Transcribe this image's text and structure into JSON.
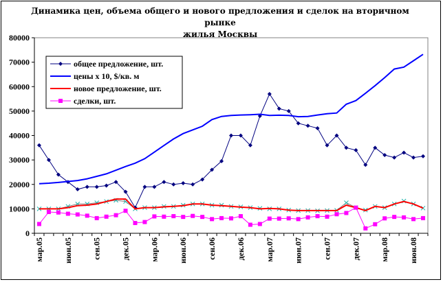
{
  "chart_data": {
    "type": "line",
    "title_line1": "Динамика цен, объема общего и нового предложения и сделок на вторичном рынке",
    "title_line2": "жилья Москвы",
    "ylim": [
      0,
      80000
    ],
    "yticks": [
      0,
      10000,
      20000,
      30000,
      40000,
      50000,
      60000,
      70000,
      80000
    ],
    "ytick_labels": [
      "0",
      "10000",
      "20000",
      "30000",
      "40000",
      "50000",
      "60000",
      "70000",
      "80000"
    ],
    "x": [
      "мар.05",
      "апр.05",
      "май.05",
      "июн.05",
      "июл.05",
      "авг.05",
      "сен.05",
      "окт.05",
      "ноя.05",
      "дек.05",
      "янв.06",
      "фев.06",
      "мар.06",
      "апр.06",
      "май.06",
      "июн.06",
      "июл.06",
      "авг.06",
      "сен.06",
      "окт.06",
      "ноя.06",
      "дек.06",
      "янв.07",
      "фев.07",
      "мар.07",
      "апр.07",
      "май.07",
      "июн.07",
      "июл.07",
      "авг.07",
      "сен.07",
      "окт.07",
      "ноя.07",
      "дек.07",
      "янв.08",
      "фев.08",
      "мар.08",
      "апр.08",
      "май.08",
      "июн.08",
      "июл.08"
    ],
    "xtick_labels": [
      "мар.05",
      "июн.05",
      "сен.05",
      "дек.05",
      "мар.06",
      "июн.06",
      "сен.06",
      "дек.06",
      "мар.07",
      "июн.07",
      "сен.07",
      "дек.07",
      "мар.08",
      "июн.08"
    ],
    "grid": false,
    "legend_position": "top-left",
    "series": [
      {
        "name": "общее предложение, шт.",
        "color": "#000080",
        "marker": "diamond",
        "values": [
          36000,
          30000,
          24000,
          21000,
          18000,
          19000,
          19000,
          19500,
          21000,
          17000,
          10500,
          19000,
          19000,
          21000,
          20000,
          20500,
          20000,
          22000,
          26000,
          29500,
          40000,
          40000,
          36000,
          48000,
          57000,
          51000,
          50000,
          45000,
          44000,
          43000,
          36000,
          40000,
          35000,
          34000,
          28000,
          35000,
          32000,
          31000,
          33000,
          31000,
          31500
        ]
      },
      {
        "name": "цены х 10, $/кв. м",
        "color": "#0000ff",
        "marker": "none",
        "values": [
          20300,
          20500,
          20800,
          21200,
          21600,
          22300,
          23300,
          24300,
          25800,
          27300,
          28700,
          30500,
          33200,
          35900,
          38600,
          40800,
          42300,
          43800,
          46500,
          47800,
          48200,
          48400,
          48500,
          48700,
          48200,
          48300,
          48200,
          47700,
          47800,
          48400,
          48900,
          49200,
          52800,
          54300,
          57300,
          60400,
          63700,
          67200,
          68000,
          70600,
          73200
        ]
      },
      {
        "name": "новое предложение, шт.",
        "color": "#ff0000",
        "marker": "none",
        "values": [
          10000,
          10000,
          10000,
          10500,
          11300,
          11500,
          12000,
          13000,
          14000,
          14000,
          10000,
          10500,
          10500,
          10800,
          11000,
          11300,
          12000,
          12000,
          11500,
          11300,
          11000,
          10700,
          10500,
          10000,
          10200,
          10000,
          9500,
          9300,
          9300,
          9300,
          9300,
          9300,
          11500,
          10500,
          9300,
          11000,
          10500,
          12000,
          13000,
          12000,
          10300
        ]
      },
      {
        "name": "сделки, шт.",
        "color": "#ff00ff",
        "marker": "square",
        "values": [
          3800,
          8700,
          8500,
          8000,
          7700,
          7200,
          6200,
          6800,
          7400,
          9200,
          4200,
          4600,
          6900,
          6800,
          7000,
          6700,
          7100,
          6700,
          5800,
          6200,
          6100,
          7000,
          3500,
          3800,
          6000,
          6000,
          6100,
          5800,
          6500,
          7000,
          6800,
          7800,
          8300,
          10500,
          2000,
          3700,
          6100,
          6700,
          6500,
          5800,
          6200
        ]
      }
    ],
    "extra_series_hidden_legend": {
      "color": "#808080",
      "marker": "x",
      "values": [
        10000,
        10000,
        10000,
        11000,
        12000,
        12000,
        12500,
        13000,
        13500,
        13000,
        10000,
        10500,
        10500,
        11000,
        11000,
        11500,
        12000,
        12000,
        11500,
        11500,
        11000,
        10800,
        10500,
        10200,
        10000,
        10000,
        9500,
        9300,
        9300,
        9200,
        9300,
        9400,
        12500,
        10500,
        9500,
        11000,
        10500,
        12000,
        13200,
        12000,
        10300
      ]
    }
  }
}
